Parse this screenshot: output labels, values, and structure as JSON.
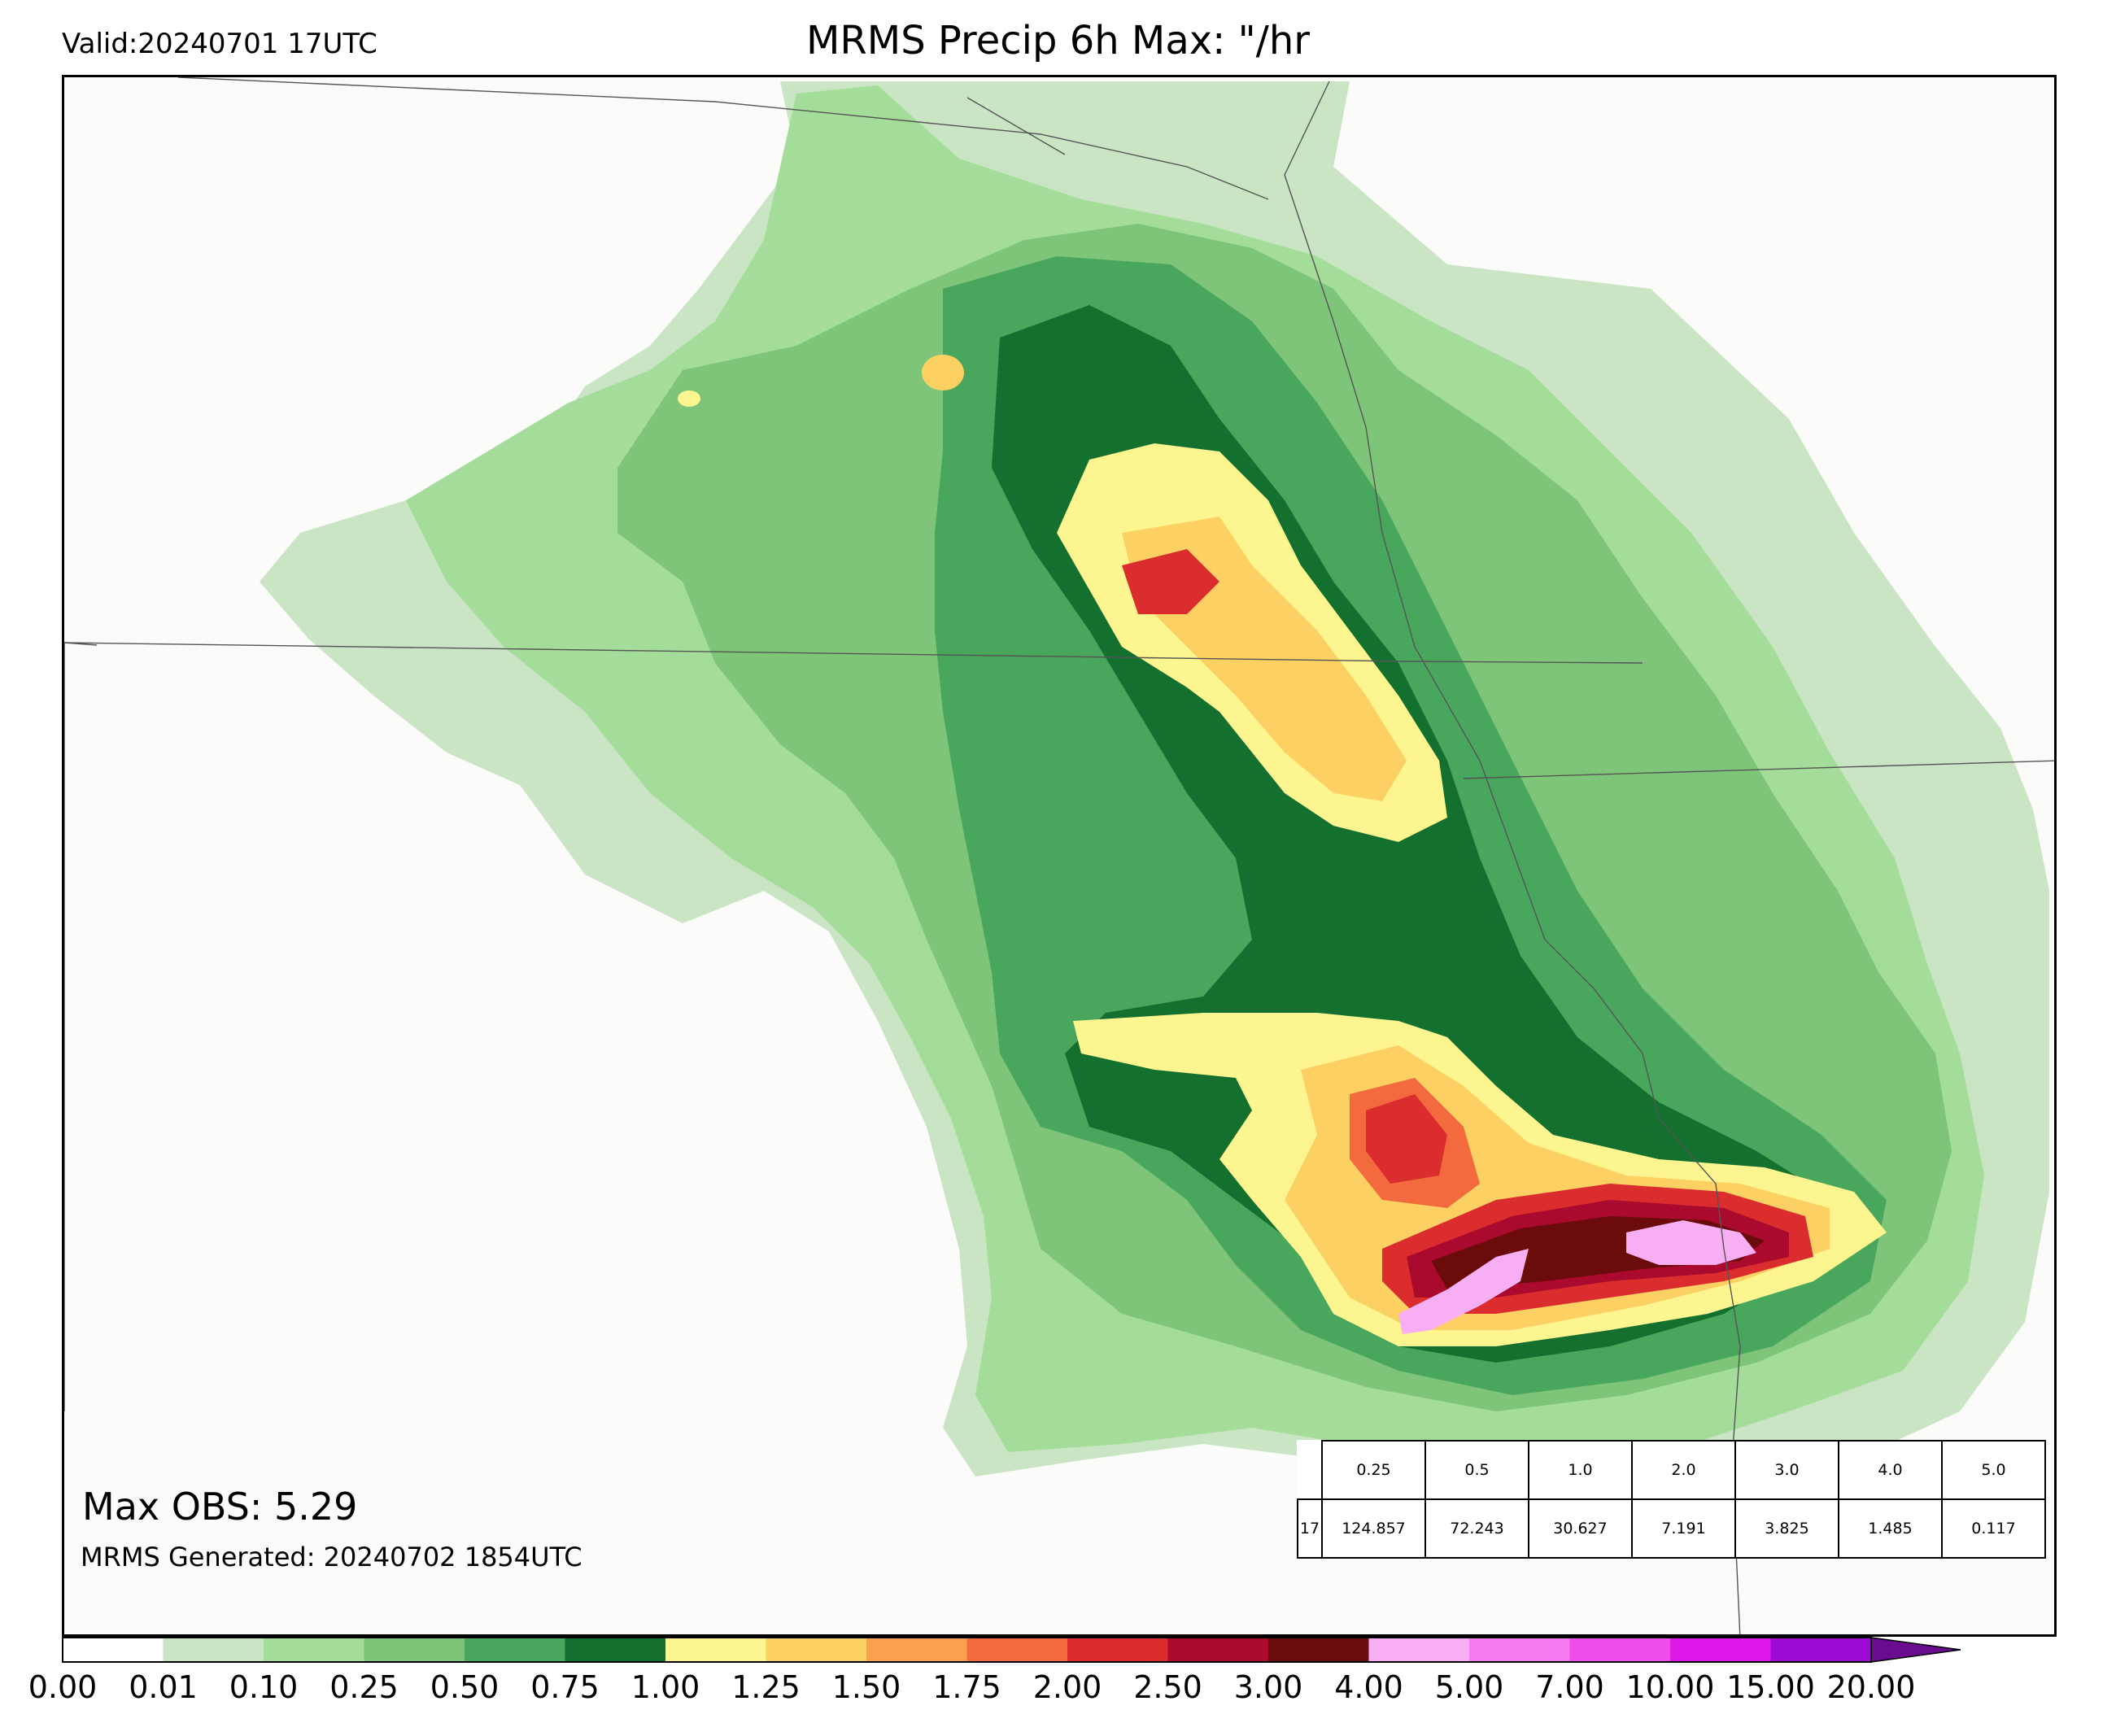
{
  "header": {
    "valid_label": "Valid:20240701 17UTC",
    "title": "MRMS Precip 6h Max: \"/hr"
  },
  "annotations": {
    "max_obs": "Max OBS: 5.29",
    "generated": "MRMS Generated: 20240702 1854UTC"
  },
  "stats_table": {
    "thresholds": [
      "0.25",
      "0.5",
      "1.0",
      "2.0",
      "3.0",
      "4.0",
      "5.0"
    ],
    "row_label": "17",
    "values": [
      "124.857",
      "72.243",
      "30.627",
      "7.191",
      "3.825",
      "1.485",
      "0.117"
    ]
  },
  "colorbar": {
    "ticks": [
      "0.00",
      "0.01",
      "0.10",
      "0.25",
      "0.50",
      "0.75",
      "1.00",
      "1.25",
      "1.50",
      "1.75",
      "2.00",
      "2.50",
      "3.00",
      "4.00",
      "5.00",
      "7.00",
      "10.00",
      "15.00",
      "20.00"
    ],
    "colors": [
      "#ffffff",
      "#c9e5c4",
      "#a4dd9a",
      "#7ec57a",
      "#48a75d",
      "#13702f",
      "#fdf690",
      "#fcd063",
      "#fba04e",
      "#f26a3d",
      "#db2c2e",
      "#aa0a2e",
      "#6c0b0b",
      "#f8aef2",
      "#f47af0",
      "#ef4cec",
      "#dd18e8",
      "#9d0bd4"
    ],
    "extend_color": "#6a0c8e"
  },
  "map_colors": {
    "background": "#fbfbf9",
    "boundary": "#555555"
  }
}
